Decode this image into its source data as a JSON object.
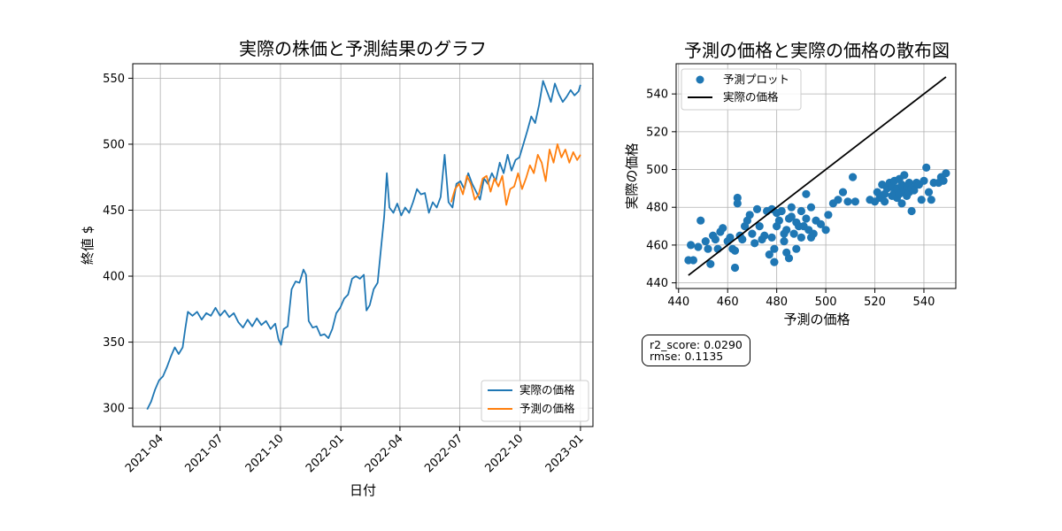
{
  "chart_data": [
    {
      "type": "line",
      "title": "実際の株価と予測結果のグラフ",
      "xlabel": "日付",
      "ylabel": "終値 $",
      "xlim": [
        "2021-02-18",
        "2023-01-20"
      ],
      "ylim": [
        286,
        561
      ],
      "x_ticks": [
        "2021-04",
        "2021-07",
        "2021-10",
        "2022-01",
        "2022-04",
        "2022-07",
        "2022-10",
        "2023-01"
      ],
      "y_ticks": [
        300,
        350,
        400,
        450,
        500,
        550
      ],
      "grid": true,
      "legend_position": "lower-right",
      "series": [
        {
          "name": "実際の価格",
          "color": "#1f77b4",
          "points": [
            [
              "2021-03-12",
              299
            ],
            [
              "2021-03-18",
              305
            ],
            [
              "2021-03-24",
              314
            ],
            [
              "2021-03-30",
              321
            ],
            [
              "2021-04-05",
              324
            ],
            [
              "2021-04-11",
              331
            ],
            [
              "2021-04-17",
              339
            ],
            [
              "2021-04-23",
              346
            ],
            [
              "2021-04-29",
              341
            ],
            [
              "2021-05-05",
              346
            ],
            [
              "2021-05-09",
              360
            ],
            [
              "2021-05-13",
              373
            ],
            [
              "2021-05-20",
              370
            ],
            [
              "2021-05-27",
              373
            ],
            [
              "2021-06-03",
              367
            ],
            [
              "2021-06-10",
              372
            ],
            [
              "2021-06-17",
              370
            ],
            [
              "2021-06-24",
              376
            ],
            [
              "2021-07-01",
              370
            ],
            [
              "2021-07-08",
              374
            ],
            [
              "2021-07-15",
              369
            ],
            [
              "2021-07-22",
              372
            ],
            [
              "2021-07-29",
              365
            ],
            [
              "2021-08-05",
              361
            ],
            [
              "2021-08-12",
              367
            ],
            [
              "2021-08-19",
              362
            ],
            [
              "2021-08-26",
              368
            ],
            [
              "2021-09-02",
              363
            ],
            [
              "2021-09-09",
              366
            ],
            [
              "2021-09-16",
              360
            ],
            [
              "2021-09-23",
              364
            ],
            [
              "2021-09-28",
              352
            ],
            [
              "2021-10-02",
              348
            ],
            [
              "2021-10-06",
              360
            ],
            [
              "2021-10-12",
              362
            ],
            [
              "2021-10-18",
              390
            ],
            [
              "2021-10-24",
              396
            ],
            [
              "2021-10-30",
              395
            ],
            [
              "2021-11-05",
              405
            ],
            [
              "2021-11-09",
              401
            ],
            [
              "2021-11-13",
              366
            ],
            [
              "2021-11-19",
              361
            ],
            [
              "2021-11-25",
              362
            ],
            [
              "2021-12-01",
              355
            ],
            [
              "2021-12-07",
              356
            ],
            [
              "2021-12-13",
              353
            ],
            [
              "2021-12-19",
              360
            ],
            [
              "2021-12-25",
              372
            ],
            [
              "2021-12-31",
              376
            ],
            [
              "2022-01-06",
              383
            ],
            [
              "2022-01-12",
              386
            ],
            [
              "2022-01-18",
              398
            ],
            [
              "2022-01-24",
              400
            ],
            [
              "2022-01-30",
              398
            ],
            [
              "2022-02-05",
              401
            ],
            [
              "2022-02-09",
              374
            ],
            [
              "2022-02-14",
              378
            ],
            [
              "2022-02-20",
              390
            ],
            [
              "2022-02-26",
              395
            ],
            [
              "2022-03-04",
              425
            ],
            [
              "2022-03-08",
              445
            ],
            [
              "2022-03-12",
              478
            ],
            [
              "2022-03-16",
              452
            ],
            [
              "2022-03-22",
              448
            ],
            [
              "2022-03-28",
              455
            ],
            [
              "2022-04-03",
              446
            ],
            [
              "2022-04-09",
              452
            ],
            [
              "2022-04-15",
              448
            ],
            [
              "2022-04-21",
              456
            ],
            [
              "2022-04-27",
              466
            ],
            [
              "2022-05-03",
              462
            ],
            [
              "2022-05-09",
              463
            ],
            [
              "2022-05-15",
              448
            ],
            [
              "2022-05-21",
              456
            ],
            [
              "2022-05-27",
              452
            ],
            [
              "2022-06-02",
              460
            ],
            [
              "2022-06-08",
              492
            ],
            [
              "2022-06-14",
              456
            ],
            [
              "2022-06-20",
              452
            ],
            [
              "2022-06-26",
              470
            ],
            [
              "2022-07-02",
              472
            ],
            [
              "2022-07-08",
              466
            ],
            [
              "2022-07-14",
              478
            ],
            [
              "2022-07-20",
              470
            ],
            [
              "2022-07-26",
              464
            ],
            [
              "2022-08-01",
              458
            ],
            [
              "2022-08-07",
              474
            ],
            [
              "2022-08-13",
              470
            ],
            [
              "2022-08-19",
              478
            ],
            [
              "2022-08-25",
              472
            ],
            [
              "2022-08-31",
              486
            ],
            [
              "2022-09-06",
              478
            ],
            [
              "2022-09-12",
              492
            ],
            [
              "2022-09-18",
              480
            ],
            [
              "2022-09-24",
              488
            ],
            [
              "2022-09-30",
              490
            ],
            [
              "2022-10-06",
              500
            ],
            [
              "2022-10-12",
              510
            ],
            [
              "2022-10-18",
              521
            ],
            [
              "2022-10-24",
              516
            ],
            [
              "2022-10-30",
              530
            ],
            [
              "2022-11-05",
              548
            ],
            [
              "2022-11-11",
              540
            ],
            [
              "2022-11-17",
              532
            ],
            [
              "2022-11-23",
              546
            ],
            [
              "2022-11-29",
              538
            ],
            [
              "2022-12-05",
              532
            ],
            [
              "2022-12-11",
              536
            ],
            [
              "2022-12-17",
              541
            ],
            [
              "2022-12-23",
              537
            ],
            [
              "2022-12-29",
              540
            ],
            [
              "2023-01-01",
              545
            ]
          ]
        },
        {
          "name": "予測の価格",
          "color": "#ff7f0e",
          "points": [
            [
              "2022-06-18",
              456
            ],
            [
              "2022-06-24",
              466
            ],
            [
              "2022-06-30",
              470
            ],
            [
              "2022-07-06",
              462
            ],
            [
              "2022-07-12",
              476
            ],
            [
              "2022-07-18",
              470
            ],
            [
              "2022-07-24",
              458
            ],
            [
              "2022-07-30",
              462
            ],
            [
              "2022-08-05",
              474
            ],
            [
              "2022-08-11",
              476
            ],
            [
              "2022-08-17",
              464
            ],
            [
              "2022-08-23",
              474
            ],
            [
              "2022-08-29",
              468
            ],
            [
              "2022-09-04",
              476
            ],
            [
              "2022-09-10",
              454
            ],
            [
              "2022-09-16",
              466
            ],
            [
              "2022-09-22",
              468
            ],
            [
              "2022-09-28",
              478
            ],
            [
              "2022-10-04",
              466
            ],
            [
              "2022-10-10",
              474
            ],
            [
              "2022-10-16",
              484
            ],
            [
              "2022-10-22",
              478
            ],
            [
              "2022-10-28",
              492
            ],
            [
              "2022-11-03",
              486
            ],
            [
              "2022-11-09",
              472
            ],
            [
              "2022-11-15",
              496
            ],
            [
              "2022-11-21",
              486
            ],
            [
              "2022-11-27",
              500
            ],
            [
              "2022-12-03",
              490
            ],
            [
              "2022-12-09",
              496
            ],
            [
              "2022-12-15",
              486
            ],
            [
              "2022-12-21",
              494
            ],
            [
              "2022-12-27",
              488
            ],
            [
              "2023-01-01",
              492
            ]
          ]
        }
      ]
    },
    {
      "type": "scatter",
      "title": "予測の価格と実際の価格の散布図",
      "xlabel": "予測の価格",
      "ylabel": "実際の価格",
      "xlim": [
        439,
        553
      ],
      "ylim": [
        437,
        556
      ],
      "x_ticks": [
        440,
        460,
        480,
        500,
        520,
        540
      ],
      "y_ticks": [
        440,
        460,
        480,
        500,
        520,
        540
      ],
      "grid": true,
      "legend_position": "upper-left",
      "line": {
        "name": "実際の価格",
        "color": "#000000",
        "from": [
          444,
          444
        ],
        "to": [
          549,
          549
        ]
      },
      "scatter_series": {
        "name": "予測プロット",
        "color": "#1f77b4",
        "points": [
          [
            444,
            452
          ],
          [
            445,
            460
          ],
          [
            446,
            452
          ],
          [
            448,
            459
          ],
          [
            449,
            473
          ],
          [
            451,
            462
          ],
          [
            452,
            458
          ],
          [
            453,
            450
          ],
          [
            454,
            465
          ],
          [
            455,
            463
          ],
          [
            456,
            458
          ],
          [
            457,
            467
          ],
          [
            458,
            469
          ],
          [
            460,
            462
          ],
          [
            461,
            464
          ],
          [
            462,
            458
          ],
          [
            463,
            448
          ],
          [
            463,
            457
          ],
          [
            464,
            485
          ],
          [
            464,
            482
          ],
          [
            465,
            465
          ],
          [
            466,
            463
          ],
          [
            467,
            470
          ],
          [
            468,
            473
          ],
          [
            469,
            476
          ],
          [
            470,
            466
          ],
          [
            471,
            461
          ],
          [
            472,
            479
          ],
          [
            473,
            470
          ],
          [
            474,
            463
          ],
          [
            475,
            465
          ],
          [
            476,
            478
          ],
          [
            477,
            455
          ],
          [
            478,
            479
          ],
          [
            478,
            464
          ],
          [
            479,
            451
          ],
          [
            479,
            458
          ],
          [
            480,
            477
          ],
          [
            480,
            470
          ],
          [
            481,
            473
          ],
          [
            482,
            478
          ],
          [
            483,
            466
          ],
          [
            483,
            462
          ],
          [
            484,
            456
          ],
          [
            484,
            468
          ],
          [
            485,
            453
          ],
          [
            485,
            474
          ],
          [
            486,
            480
          ],
          [
            486,
            475
          ],
          [
            487,
            466
          ],
          [
            488,
            472
          ],
          [
            488,
            458
          ],
          [
            489,
            470
          ],
          [
            490,
            464
          ],
          [
            490,
            478
          ],
          [
            491,
            470
          ],
          [
            492,
            487
          ],
          [
            492,
            474
          ],
          [
            493,
            468
          ],
          [
            494,
            480
          ],
          [
            494,
            464
          ],
          [
            495,
            466
          ],
          [
            496,
            473
          ],
          [
            498,
            471
          ],
          [
            500,
            468
          ],
          [
            501,
            476
          ],
          [
            503,
            482
          ],
          [
            505,
            484
          ],
          [
            507,
            488
          ],
          [
            509,
            483
          ],
          [
            511,
            496
          ],
          [
            512,
            483
          ],
          [
            518,
            484
          ],
          [
            520,
            483
          ],
          [
            521,
            488
          ],
          [
            522,
            485
          ],
          [
            523,
            492
          ],
          [
            524,
            483
          ],
          [
            524,
            487
          ],
          [
            525,
            490
          ],
          [
            526,
            493
          ],
          [
            527,
            486
          ],
          [
            527,
            491
          ],
          [
            528,
            488
          ],
          [
            528,
            494
          ],
          [
            529,
            485
          ],
          [
            529,
            490
          ],
          [
            530,
            487
          ],
          [
            530,
            495
          ],
          [
            531,
            492
          ],
          [
            531,
            482
          ],
          [
            532,
            489
          ],
          [
            532,
            497
          ],
          [
            533,
            486
          ],
          [
            533,
            491
          ],
          [
            534,
            488
          ],
          [
            534,
            493
          ],
          [
            535,
            478
          ],
          [
            535,
            490
          ],
          [
            536,
            489
          ],
          [
            537,
            493
          ],
          [
            538,
            492
          ],
          [
            539,
            484
          ],
          [
            540,
            494
          ],
          [
            541,
            501
          ],
          [
            542,
            488
          ],
          [
            543,
            484
          ],
          [
            544,
            493
          ],
          [
            546,
            493
          ],
          [
            547,
            496
          ],
          [
            548,
            494
          ],
          [
            549,
            498
          ]
        ]
      }
    }
  ],
  "stats": {
    "r2_label": "r2_score: 0.0290",
    "rmse_label": "rmse: 0.1135"
  }
}
